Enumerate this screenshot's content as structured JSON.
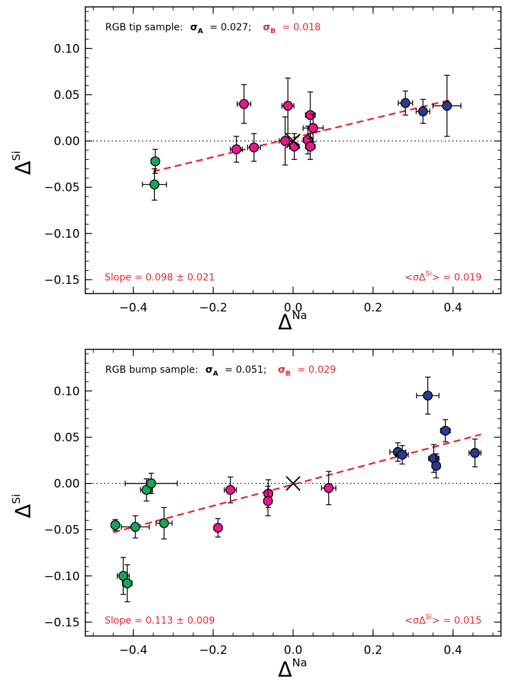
{
  "chart_data": [
    {
      "type": "scatter",
      "xlabel": "Δ",
      "xlabel_sup": "Na",
      "ylabel": "Δ",
      "ylabel_sup": "Si",
      "xlim": [
        -0.52,
        0.52
      ],
      "ylim": [
        -0.165,
        0.145
      ],
      "xticks": [
        "-0.4",
        "-0.2",
        "0.0",
        "0.2",
        "0.4"
      ],
      "xtick_values": [
        -0.4,
        -0.2,
        0.0,
        0.2,
        0.4
      ],
      "yticks": [
        "0.10",
        "0.05",
        "0.00",
        "-0.05",
        "-0.10",
        "-0.15"
      ],
      "ytick_values": [
        0.1,
        0.05,
        0.0,
        -0.05,
        -0.1,
        -0.15
      ],
      "annotation_left": "RGB tip sample:",
      "sigma_a_label": "σ",
      "sigma_a_sub": "A",
      "sigma_a_value": "= 0.027;",
      "sigma_b_label": "σ",
      "sigma_b_sub": "B",
      "sigma_b_value": "= 0.018",
      "slope_text": "Slope =  0.098 ± 0.021",
      "mean_sigma_text": "<σΔ",
      "mean_sigma_sup": "Si",
      "mean_sigma_value": "> = 0.019",
      "fit": {
        "x": [
          -0.35,
          0.4
        ],
        "y": [
          -0.033,
          0.045
        ]
      },
      "center_marker": {
        "x": 0.0,
        "y": 0.0
      },
      "colors": {
        "green": "#1aa35a",
        "magenta": "#e8178c",
        "blue": "#2b3a8f",
        "fit": "#e8272f"
      },
      "points": [
        {
          "x": -0.345,
          "y": -0.022,
          "xerr": 0.01,
          "yerr": 0.013,
          "color": "green"
        },
        {
          "x": -0.347,
          "y": -0.047,
          "xerr": 0.03,
          "yerr": 0.017,
          "color": "green"
        },
        {
          "x": -0.142,
          "y": -0.009,
          "xerr": 0.015,
          "yerr": 0.014,
          "color": "magenta"
        },
        {
          "x": -0.123,
          "y": 0.04,
          "xerr": 0.017,
          "yerr": 0.021,
          "color": "magenta"
        },
        {
          "x": -0.098,
          "y": -0.007,
          "xerr": 0.016,
          "yerr": 0.015,
          "color": "magenta"
        },
        {
          "x": -0.02,
          "y": 0.0,
          "xerr": 0.015,
          "yerr": 0.026,
          "color": "magenta"
        },
        {
          "x": -0.013,
          "y": 0.038,
          "xerr": 0.015,
          "yerr": 0.03,
          "color": "magenta"
        },
        {
          "x": 0.003,
          "y": -0.006,
          "xerr": 0.012,
          "yerr": 0.014,
          "color": "magenta"
        },
        {
          "x": 0.037,
          "y": 0.001,
          "xerr": 0.012,
          "yerr": 0.015,
          "color": "magenta"
        },
        {
          "x": 0.043,
          "y": -0.006,
          "xerr": 0.012,
          "yerr": 0.014,
          "color": "magenta"
        },
        {
          "x": 0.043,
          "y": 0.028,
          "xerr": 0.012,
          "yerr": 0.025,
          "color": "magenta"
        },
        {
          "x": 0.05,
          "y": 0.014,
          "xerr": 0.025,
          "yerr": 0.015,
          "color": "magenta"
        },
        {
          "x": 0.281,
          "y": 0.041,
          "xerr": 0.018,
          "yerr": 0.013,
          "color": "blue"
        },
        {
          "x": 0.325,
          "y": 0.032,
          "xerr": 0.017,
          "yerr": 0.013,
          "color": "blue"
        },
        {
          "x": 0.385,
          "y": 0.038,
          "xerr": 0.035,
          "yerr": 0.033,
          "color": "blue"
        }
      ]
    },
    {
      "type": "scatter",
      "xlabel": "Δ",
      "xlabel_sup": "Na",
      "ylabel": "Δ",
      "ylabel_sup": "Si",
      "xlim": [
        -0.52,
        0.52
      ],
      "ylim": [
        -0.165,
        0.145
      ],
      "xticks": [
        "-0.4",
        "-0.2",
        "0.0",
        "0.2",
        "0.4"
      ],
      "xtick_values": [
        -0.4,
        -0.2,
        0.0,
        0.2,
        0.4
      ],
      "yticks": [
        "0.10",
        "0.05",
        "0.00",
        "-0.05",
        "-0.10",
        "-0.15"
      ],
      "ytick_values": [
        0.1,
        0.05,
        0.0,
        -0.05,
        -0.1,
        -0.15
      ],
      "annotation_left": "RGB bump sample:",
      "sigma_a_label": "σ",
      "sigma_a_sub": "A",
      "sigma_a_value": "= 0.051;",
      "sigma_b_label": "σ",
      "sigma_b_sub": "B",
      "sigma_b_value": "= 0.029",
      "slope_text": "Slope =  0.113 ± 0.009",
      "mean_sigma_text": "<σΔ",
      "mean_sigma_sup": "Si",
      "mean_sigma_value": "> = 0.015",
      "fit": {
        "x": [
          -0.45,
          0.47
        ],
        "y": [
          -0.053,
          0.053
        ]
      },
      "center_marker": {
        "x": 0.0,
        "y": 0.0
      },
      "colors": {
        "green": "#1aa35a",
        "magenta": "#e8178c",
        "blue": "#2b3a8f",
        "fit": "#e8272f"
      },
      "points": [
        {
          "x": -0.445,
          "y": -0.045,
          "xerr": 0.01,
          "yerr": 0.006,
          "color": "green"
        },
        {
          "x": -0.425,
          "y": -0.1,
          "xerr": 0.015,
          "yerr": 0.02,
          "color": "green"
        },
        {
          "x": -0.415,
          "y": -0.108,
          "xerr": 0.012,
          "yerr": 0.02,
          "color": "green"
        },
        {
          "x": -0.395,
          "y": -0.047,
          "xerr": 0.035,
          "yerr": 0.012,
          "color": "green"
        },
        {
          "x": -0.367,
          "y": -0.007,
          "xerr": 0.015,
          "yerr": 0.012,
          "color": "green"
        },
        {
          "x": -0.355,
          "y": 0.0,
          "xerr": 0.065,
          "yerr": 0.011,
          "color": "green"
        },
        {
          "x": -0.323,
          "y": -0.043,
          "xerr": 0.02,
          "yerr": 0.017,
          "color": "green"
        },
        {
          "x": -0.188,
          "y": -0.048,
          "xerr": 0.01,
          "yerr": 0.01,
          "color": "magenta"
        },
        {
          "x": -0.157,
          "y": -0.007,
          "xerr": 0.015,
          "yerr": 0.014,
          "color": "magenta"
        },
        {
          "x": -0.062,
          "y": -0.011,
          "xerr": 0.01,
          "yerr": 0.015,
          "color": "magenta"
        },
        {
          "x": -0.063,
          "y": -0.019,
          "xerr": 0.01,
          "yerr": 0.016,
          "color": "magenta"
        },
        {
          "x": 0.089,
          "y": -0.005,
          "xerr": 0.018,
          "yerr": 0.018,
          "color": "magenta"
        },
        {
          "x": 0.262,
          "y": 0.034,
          "xerr": 0.02,
          "yerr": 0.01,
          "color": "blue"
        },
        {
          "x": 0.273,
          "y": 0.031,
          "xerr": 0.015,
          "yerr": 0.01,
          "color": "blue"
        },
        {
          "x": 0.337,
          "y": 0.095,
          "xerr": 0.028,
          "yerr": 0.02,
          "color": "blue"
        },
        {
          "x": 0.352,
          "y": 0.027,
          "xerr": 0.013,
          "yerr": 0.015,
          "color": "blue"
        },
        {
          "x": 0.358,
          "y": 0.019,
          "xerr": 0.01,
          "yerr": 0.013,
          "color": "blue"
        },
        {
          "x": 0.381,
          "y": 0.057,
          "xerr": 0.012,
          "yerr": 0.012,
          "color": "blue"
        },
        {
          "x": 0.455,
          "y": 0.033,
          "xerr": 0.015,
          "yerr": 0.015,
          "color": "blue"
        }
      ]
    }
  ]
}
